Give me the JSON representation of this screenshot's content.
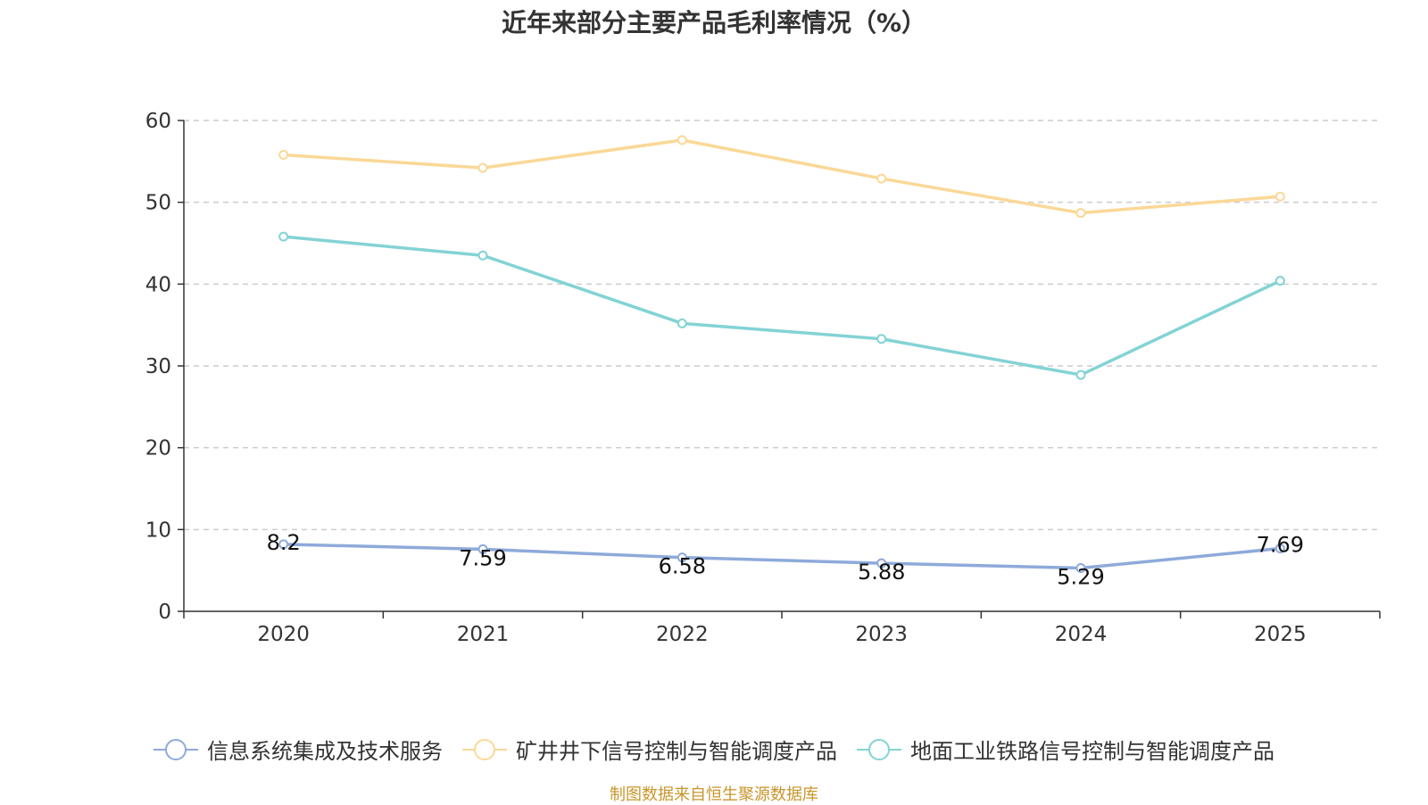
{
  "chart_data": {
    "type": "line",
    "title": "近年来部分主要产品毛利率情况（%）",
    "xlabel": "",
    "ylabel": "",
    "categories": [
      "2020",
      "2021",
      "2022",
      "2023",
      "2024",
      "2025"
    ],
    "ylim": [
      0,
      60
    ],
    "yticks": [
      0,
      10,
      20,
      30,
      40,
      50,
      60
    ],
    "grid": true,
    "legend_position": "bottom",
    "series": [
      {
        "name": "信息系统集成及技术服务",
        "color": "#8eaadb",
        "values": [
          8.2,
          7.59,
          6.58,
          5.88,
          5.29,
          7.69
        ],
        "labels": [
          "8.2",
          "7.59",
          "6.58",
          "5.88",
          "5.29",
          "7.69"
        ],
        "show_labels": true
      },
      {
        "name": "矿井井下信号控制与智能调度产品",
        "color": "#fad897",
        "values": [
          55.8,
          54.2,
          57.6,
          52.9,
          48.7,
          50.7
        ],
        "show_labels": false
      },
      {
        "name": "地面工业铁路信号控制与智能调度产品",
        "color": "#83d3d4",
        "values": [
          45.8,
          43.5,
          35.2,
          33.3,
          28.9,
          40.4
        ],
        "show_labels": false
      }
    ]
  },
  "footer": {
    "source": "制图数据来自恒生聚源数据库"
  }
}
